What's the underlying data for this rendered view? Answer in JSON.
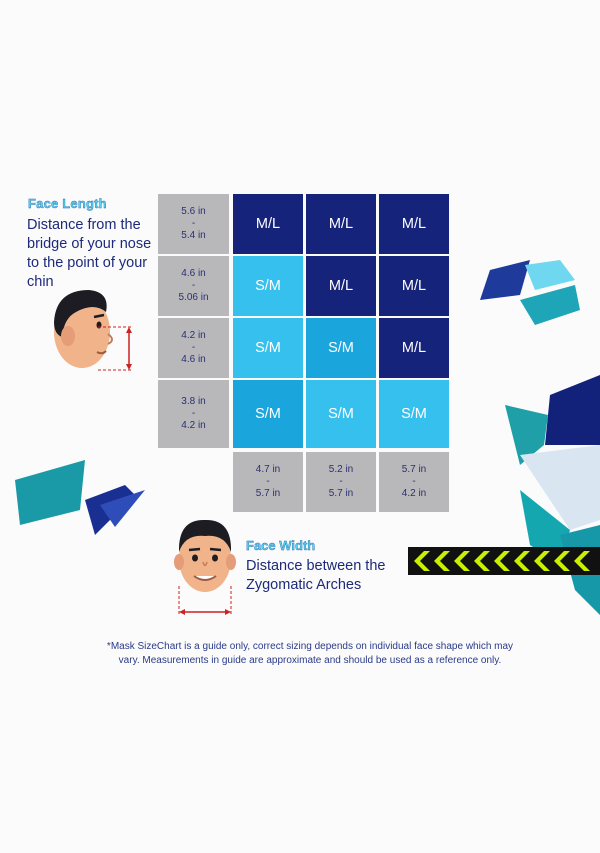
{
  "face_length": {
    "title": "Face Length",
    "description": "Distance from the bridge of your nose to the point of your chin"
  },
  "face_width": {
    "title": "Face Width",
    "description": "Distance between the Zygomatic Arches"
  },
  "grid": {
    "length_ranges": [
      {
        "top": "5.6 in",
        "sep": "-",
        "bottom": "5.4 in"
      },
      {
        "top": "4.6 in",
        "sep": "-",
        "bottom": "5.06 in"
      },
      {
        "top": "4.2 in",
        "sep": "-",
        "bottom": "4.6 in"
      },
      {
        "top": "3.8 in",
        "sep": "-",
        "bottom": "4.2 in"
      }
    ],
    "width_ranges": [
      {
        "top": "4.7 in",
        "sep": "-",
        "bottom": "5.7 in"
      },
      {
        "top": "5.2 in",
        "sep": "-",
        "bottom": "5.7 in"
      },
      {
        "top": "5.7 in",
        "sep": "-",
        "bottom": "4.2 in"
      }
    ],
    "rows": [
      [
        "M/L",
        "M/L",
        "M/L"
      ],
      [
        "S/M",
        "M/L",
        "M/L"
      ],
      [
        "S/M",
        "S/M",
        "M/L"
      ],
      [
        "S/M",
        "S/M",
        "S/M"
      ]
    ]
  },
  "footnote": "*Mask SizeChart is a guide only, correct sizing depends on individual face shape which may vary. Measurements in guide are approximate and should be used as a reference only.",
  "colors": {
    "ml": "#15237a",
    "sm_light": "#35c0ee",
    "sm_mid": "#1aa5dc",
    "range_cell": "#b8b8ba",
    "accent": "#5fd0ee",
    "text": "#1d2a7a"
  },
  "icons": [
    "face-side-profile-icon",
    "face-front-icon",
    "chevron-tape-icon"
  ]
}
